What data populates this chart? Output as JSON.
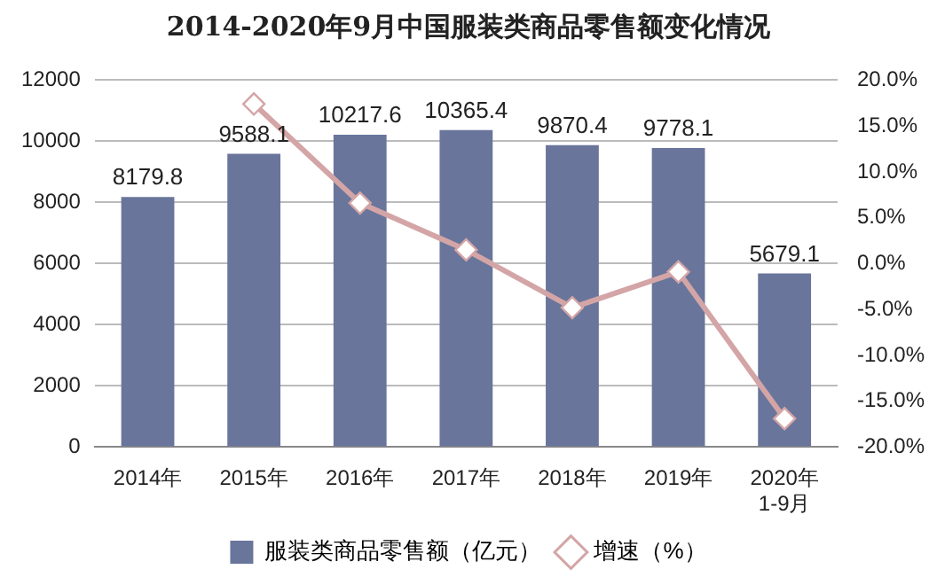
{
  "chart_data": {
    "type": "bar",
    "title": "2014-2020年9月中国服装类商品零售额变化情况",
    "categories": [
      "2014年",
      "2015年",
      "2016年",
      "2017年",
      "2018年",
      "2019年",
      "2020年\n1-9月"
    ],
    "series": [
      {
        "name": "服装类商品零售额（亿元）",
        "color": "#69759b",
        "values": [
          8179.8,
          9588.1,
          10217.6,
          10365.4,
          9870.4,
          9778.1,
          5679.1
        ],
        "value_labels": [
          "8179.8",
          "9588.1",
          "10217.6",
          "10365.4",
          "9870.4",
          "9778.1",
          "5679.1"
        ]
      },
      {
        "name": "增速（%）",
        "type": "line",
        "axis": "y2",
        "color": "#d4a5a6",
        "marker": "diamond",
        "values": [
          null,
          17.4,
          6.6,
          1.5,
          -4.8,
          -0.9,
          -16.9
        ]
      }
    ],
    "ylim": [
      0,
      12000
    ],
    "yticks": [
      0,
      2000,
      4000,
      6000,
      8000,
      10000,
      12000
    ],
    "y2lim": [
      -20,
      20
    ],
    "y2ticks": [
      {
        "value": -20,
        "label": "-20.0%"
      },
      {
        "value": -15,
        "label": "-15.0%"
      },
      {
        "value": -10,
        "label": "-10.0%"
      },
      {
        "value": -5,
        "label": "-5.0%"
      },
      {
        "value": 0,
        "label": "0.0%"
      },
      {
        "value": 5,
        "label": "5.0%"
      },
      {
        "value": 10,
        "label": "10.0%"
      },
      {
        "value": 15,
        "label": "15.0%"
      },
      {
        "value": 20,
        "label": "20.0%"
      }
    ],
    "grid": "y",
    "legend": "bottom"
  }
}
